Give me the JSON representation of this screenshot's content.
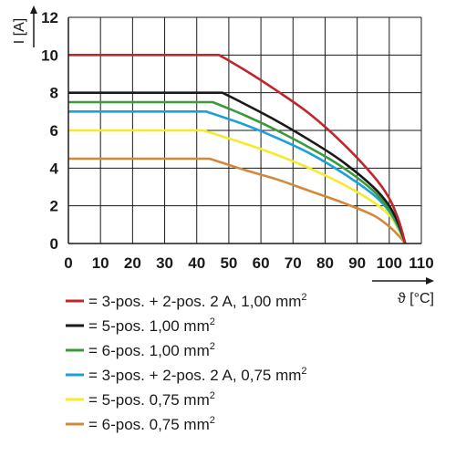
{
  "chart_data": {
    "type": "line",
    "title": "",
    "xlabel": "ϑ [°C]",
    "ylabel": "I [A]",
    "xlim": [
      0,
      110
    ],
    "ylim": [
      0,
      12
    ],
    "xticks": [
      0,
      10,
      20,
      30,
      40,
      50,
      60,
      70,
      80,
      90,
      100,
      110
    ],
    "yticks": [
      0,
      2,
      4,
      6,
      8,
      10,
      12
    ],
    "grid": true,
    "legend": "bottom",
    "series": [
      {
        "name": "= 3-pos. + 2-pos. 2 A, 1,00 mm",
        "sup": "2",
        "color": "#c0272d",
        "x": [
          0,
          47,
          55,
          65,
          75,
          85,
          95,
          100,
          103,
          105
        ],
        "y": [
          10,
          10,
          9.2,
          8.1,
          6.9,
          5.4,
          3.6,
          2.4,
          1.2,
          0
        ]
      },
      {
        "name": "= 5-pos. 1,00 mm",
        "sup": "2",
        "color": "#1a1a1a",
        "x": [
          0,
          48,
          55,
          65,
          75,
          85,
          95,
          100,
          103,
          105
        ],
        "y": [
          8,
          8,
          7.4,
          6.5,
          5.5,
          4.4,
          3.0,
          2.0,
          1.0,
          0
        ]
      },
      {
        "name": "= 6-pos. 1,00 mm",
        "sup": "2",
        "color": "#3a9b3a",
        "x": [
          0,
          45,
          55,
          65,
          75,
          85,
          95,
          100,
          103,
          105
        ],
        "y": [
          7.5,
          7.5,
          6.8,
          6.0,
          5.1,
          4.1,
          2.8,
          1.8,
          0.9,
          0
        ]
      },
      {
        "name": "= 3-pos. + 2-pos. 2 A, 0,75 mm",
        "sup": "2",
        "color": "#1ba1d8",
        "x": [
          0,
          43,
          55,
          65,
          75,
          85,
          95,
          100,
          103,
          105
        ],
        "y": [
          7,
          7,
          6.3,
          5.6,
          4.8,
          3.8,
          2.6,
          1.7,
          0.8,
          0
        ]
      },
      {
        "name": "= 5-pos. 0,75 mm",
        "sup": "2",
        "color": "#f5ea2c",
        "x": [
          0,
          42,
          55,
          65,
          75,
          85,
          95,
          100,
          103,
          105
        ],
        "y": [
          6,
          6,
          5.3,
          4.7,
          4.0,
          3.2,
          2.2,
          1.5,
          0.7,
          0
        ]
      },
      {
        "name": "= 6-pos. 0,75 mm",
        "sup": "2",
        "color": "#d4883a",
        "x": [
          0,
          44,
          55,
          65,
          75,
          85,
          95,
          100,
          103,
          105
        ],
        "y": [
          4.5,
          4.5,
          3.9,
          3.4,
          2.8,
          2.2,
          1.5,
          0.9,
          0.4,
          0
        ]
      }
    ]
  }
}
